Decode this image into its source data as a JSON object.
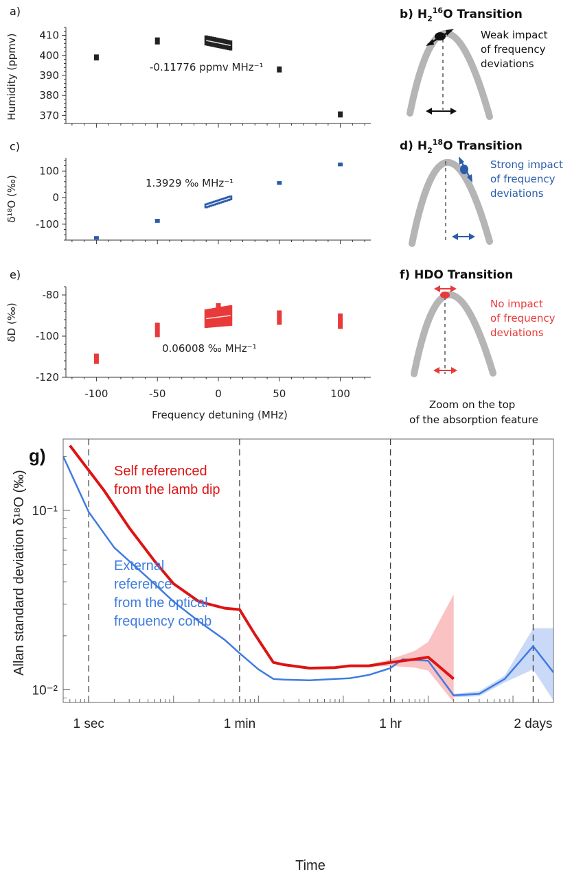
{
  "chart_data": [
    {
      "type": "scatter",
      "panel": "a)",
      "ylabel": "Humidity (ppmv)",
      "xlim": [
        -125,
        125
      ],
      "ylim": [
        366,
        414
      ],
      "yticks": [
        370,
        380,
        390,
        400,
        410
      ],
      "annotation": "-0.11776 ppmv MHz⁻¹",
      "color": "#222222",
      "points": [
        {
          "x": -100,
          "y_low": 397.5,
          "y_high": 400.5
        },
        {
          "x": -50,
          "y_low": 405.5,
          "y_high": 409
        },
        {
          "x": 50,
          "y_low": 391.5,
          "y_high": 394.5
        },
        {
          "x": 100,
          "y_low": 369,
          "y_high": 372
        }
      ],
      "cluster": {
        "x": [
          -10,
          10
        ],
        "y_start": [
          405,
          410
        ],
        "y_end": [
          402.5,
          407.5
        ]
      }
    },
    {
      "type": "scatter",
      "panel": "c)",
      "ylabel": "δ¹⁸O (‰)",
      "xlim": [
        -125,
        125
      ],
      "ylim": [
        -160,
        150
      ],
      "yticks": [
        -100,
        0,
        100
      ],
      "annotation": "1.3929 ‰ MHz⁻¹",
      "color": "#2a5caa",
      "points": [
        {
          "x": -100,
          "y_low": -158,
          "y_high": -145
        },
        {
          "x": -50,
          "y_low": -95,
          "y_high": -80
        },
        {
          "x": 50,
          "y_low": 48,
          "y_high": 62
        },
        {
          "x": 100,
          "y_low": 118,
          "y_high": 132
        }
      ],
      "cluster": {
        "x": [
          -10,
          10
        ],
        "y_start": [
          -40,
          -22
        ],
        "y_end": [
          -10,
          8
        ]
      }
    },
    {
      "type": "scatter",
      "panel": "e)",
      "ylabel": "δD (‰)",
      "xlabel": "Frequency detuning (MHz)",
      "xlim": [
        -125,
        125
      ],
      "ylim": [
        -120,
        -76
      ],
      "yticks": [
        -80,
        -100,
        -120
      ],
      "xticks": [
        -100,
        -50,
        0,
        50,
        100
      ],
      "annotation": "0.06008 ‰ MHz⁻¹",
      "color": "#e83a3a",
      "points": [
        {
          "x": -100,
          "y_low": -113.5,
          "y_high": -108.5
        },
        {
          "x": -50,
          "y_low": -100.5,
          "y_high": -93.5
        },
        {
          "x": 50,
          "y_low": -94.5,
          "y_high": -87.5
        },
        {
          "x": 100,
          "y_low": -96.5,
          "y_high": -89
        },
        {
          "x": 0,
          "y_low": -95,
          "y_high": -84
        }
      ],
      "cluster": {
        "x": [
          -10,
          10
        ],
        "y_start": [
          -96,
          -87
        ],
        "y_end": [
          -95,
          -85
        ]
      }
    },
    {
      "type": "line",
      "panel": "g)",
      "xlabel": "Time",
      "ylabel": "Allan standard deviation δ¹⁸O (‰)",
      "xscale": "log",
      "yscale": "log",
      "xlim_seconds": [
        0.5,
        300000
      ],
      "ylim": [
        0.0085,
        0.25
      ],
      "ytick_labels": [
        {
          "value": 0.1,
          "label": "10⁻¹"
        },
        {
          "value": 0.01,
          "label": "10⁻²"
        }
      ],
      "xticks": [
        {
          "seconds": 1,
          "label": "1 sec"
        },
        {
          "seconds": 60,
          "label": "1 min"
        },
        {
          "seconds": 3600,
          "label": "1 hr"
        },
        {
          "seconds": 172800,
          "label": "2 days"
        }
      ],
      "series": [
        {
          "name": "Self referenced from the lamb dip",
          "color": "#dd1414",
          "x": [
            0.6,
            1.5,
            3,
            6,
            10,
            20,
            40,
            60,
            90,
            150,
            200,
            400,
            800,
            1200,
            2000,
            3600,
            7000,
            10000,
            20000
          ],
          "y": [
            0.23,
            0.13,
            0.08,
            0.052,
            0.039,
            0.031,
            0.0285,
            0.028,
            0.0205,
            0.0142,
            0.0138,
            0.0132,
            0.0133,
            0.0136,
            0.0136,
            0.0142,
            0.0148,
            0.0152,
            0.0115
          ],
          "band": {
            "x": [
              2000,
              3600,
              7000,
              10000,
              20000
            ],
            "upper": [
              0.0138,
              0.0148,
              0.0165,
              0.0185,
              0.034
            ],
            "lower": [
              0.0134,
              0.0136,
              0.0133,
              0.0128,
              0.0085
            ]
          }
        },
        {
          "name": "External reference from the optical frequency comb",
          "color": "#3f7be0",
          "x": [
            0.5,
            1,
            2,
            5,
            10,
            20,
            40,
            60,
            100,
            150,
            200,
            400,
            800,
            1200,
            2000,
            3600,
            5000,
            10000,
            20000,
            40000,
            80000,
            172800,
            300000
          ],
          "y": [
            0.2,
            0.098,
            0.062,
            0.042,
            0.031,
            0.024,
            0.019,
            0.016,
            0.013,
            0.0115,
            0.0114,
            0.0113,
            0.0115,
            0.0116,
            0.0121,
            0.0132,
            0.0148,
            0.0145,
            0.0093,
            0.0095,
            0.0115,
            0.0175,
            0.0125
          ],
          "band": {
            "x": [
              20000,
              40000,
              80000,
              172800,
              300000
            ],
            "upper": [
              0.0095,
              0.0098,
              0.012,
              0.022,
              0.022
            ],
            "lower": [
              0.0091,
              0.0092,
              0.011,
              0.013,
              0.0087
            ]
          }
        }
      ],
      "legend_lines": {
        "red": [
          "Self referenced",
          "from the lamb dip"
        ],
        "blue": [
          "External",
          "reference",
          "from the optical",
          "frequency comb"
        ]
      }
    }
  ],
  "panels": {
    "a": "a)",
    "c": "c)",
    "e": "e)",
    "g": "g)",
    "b": {
      "label": "b)",
      "title": "H₂¹⁶O Transition",
      "text": [
        "Weak impact",
        "of frequency",
        "deviations"
      ],
      "color": "#111111"
    },
    "d": {
      "label": "d)",
      "title": "H₂¹⁸O Transition",
      "text": [
        "Strong impact",
        "of frequency",
        "deviations"
      ],
      "color": "#2a5caa"
    },
    "f": {
      "label": "f)",
      "title": "HDO Transition",
      "text": [
        "No impact",
        "of frequency",
        "deviations"
      ],
      "color": "#e83a3a"
    },
    "zoom_caption": [
      "Zoom on the top",
      "of the absorption feature"
    ]
  },
  "axes_text": {
    "a_ylabel": "Humidity (ppmv)",
    "c_ylabel": "δ¹⁸O (‰)",
    "e_ylabel": "δD (‰)",
    "x_label": "Frequency detuning (MHz)",
    "g_xlabel": "Time",
    "g_ylabel": "Allan standard deviation δ¹⁸O (‰)"
  }
}
